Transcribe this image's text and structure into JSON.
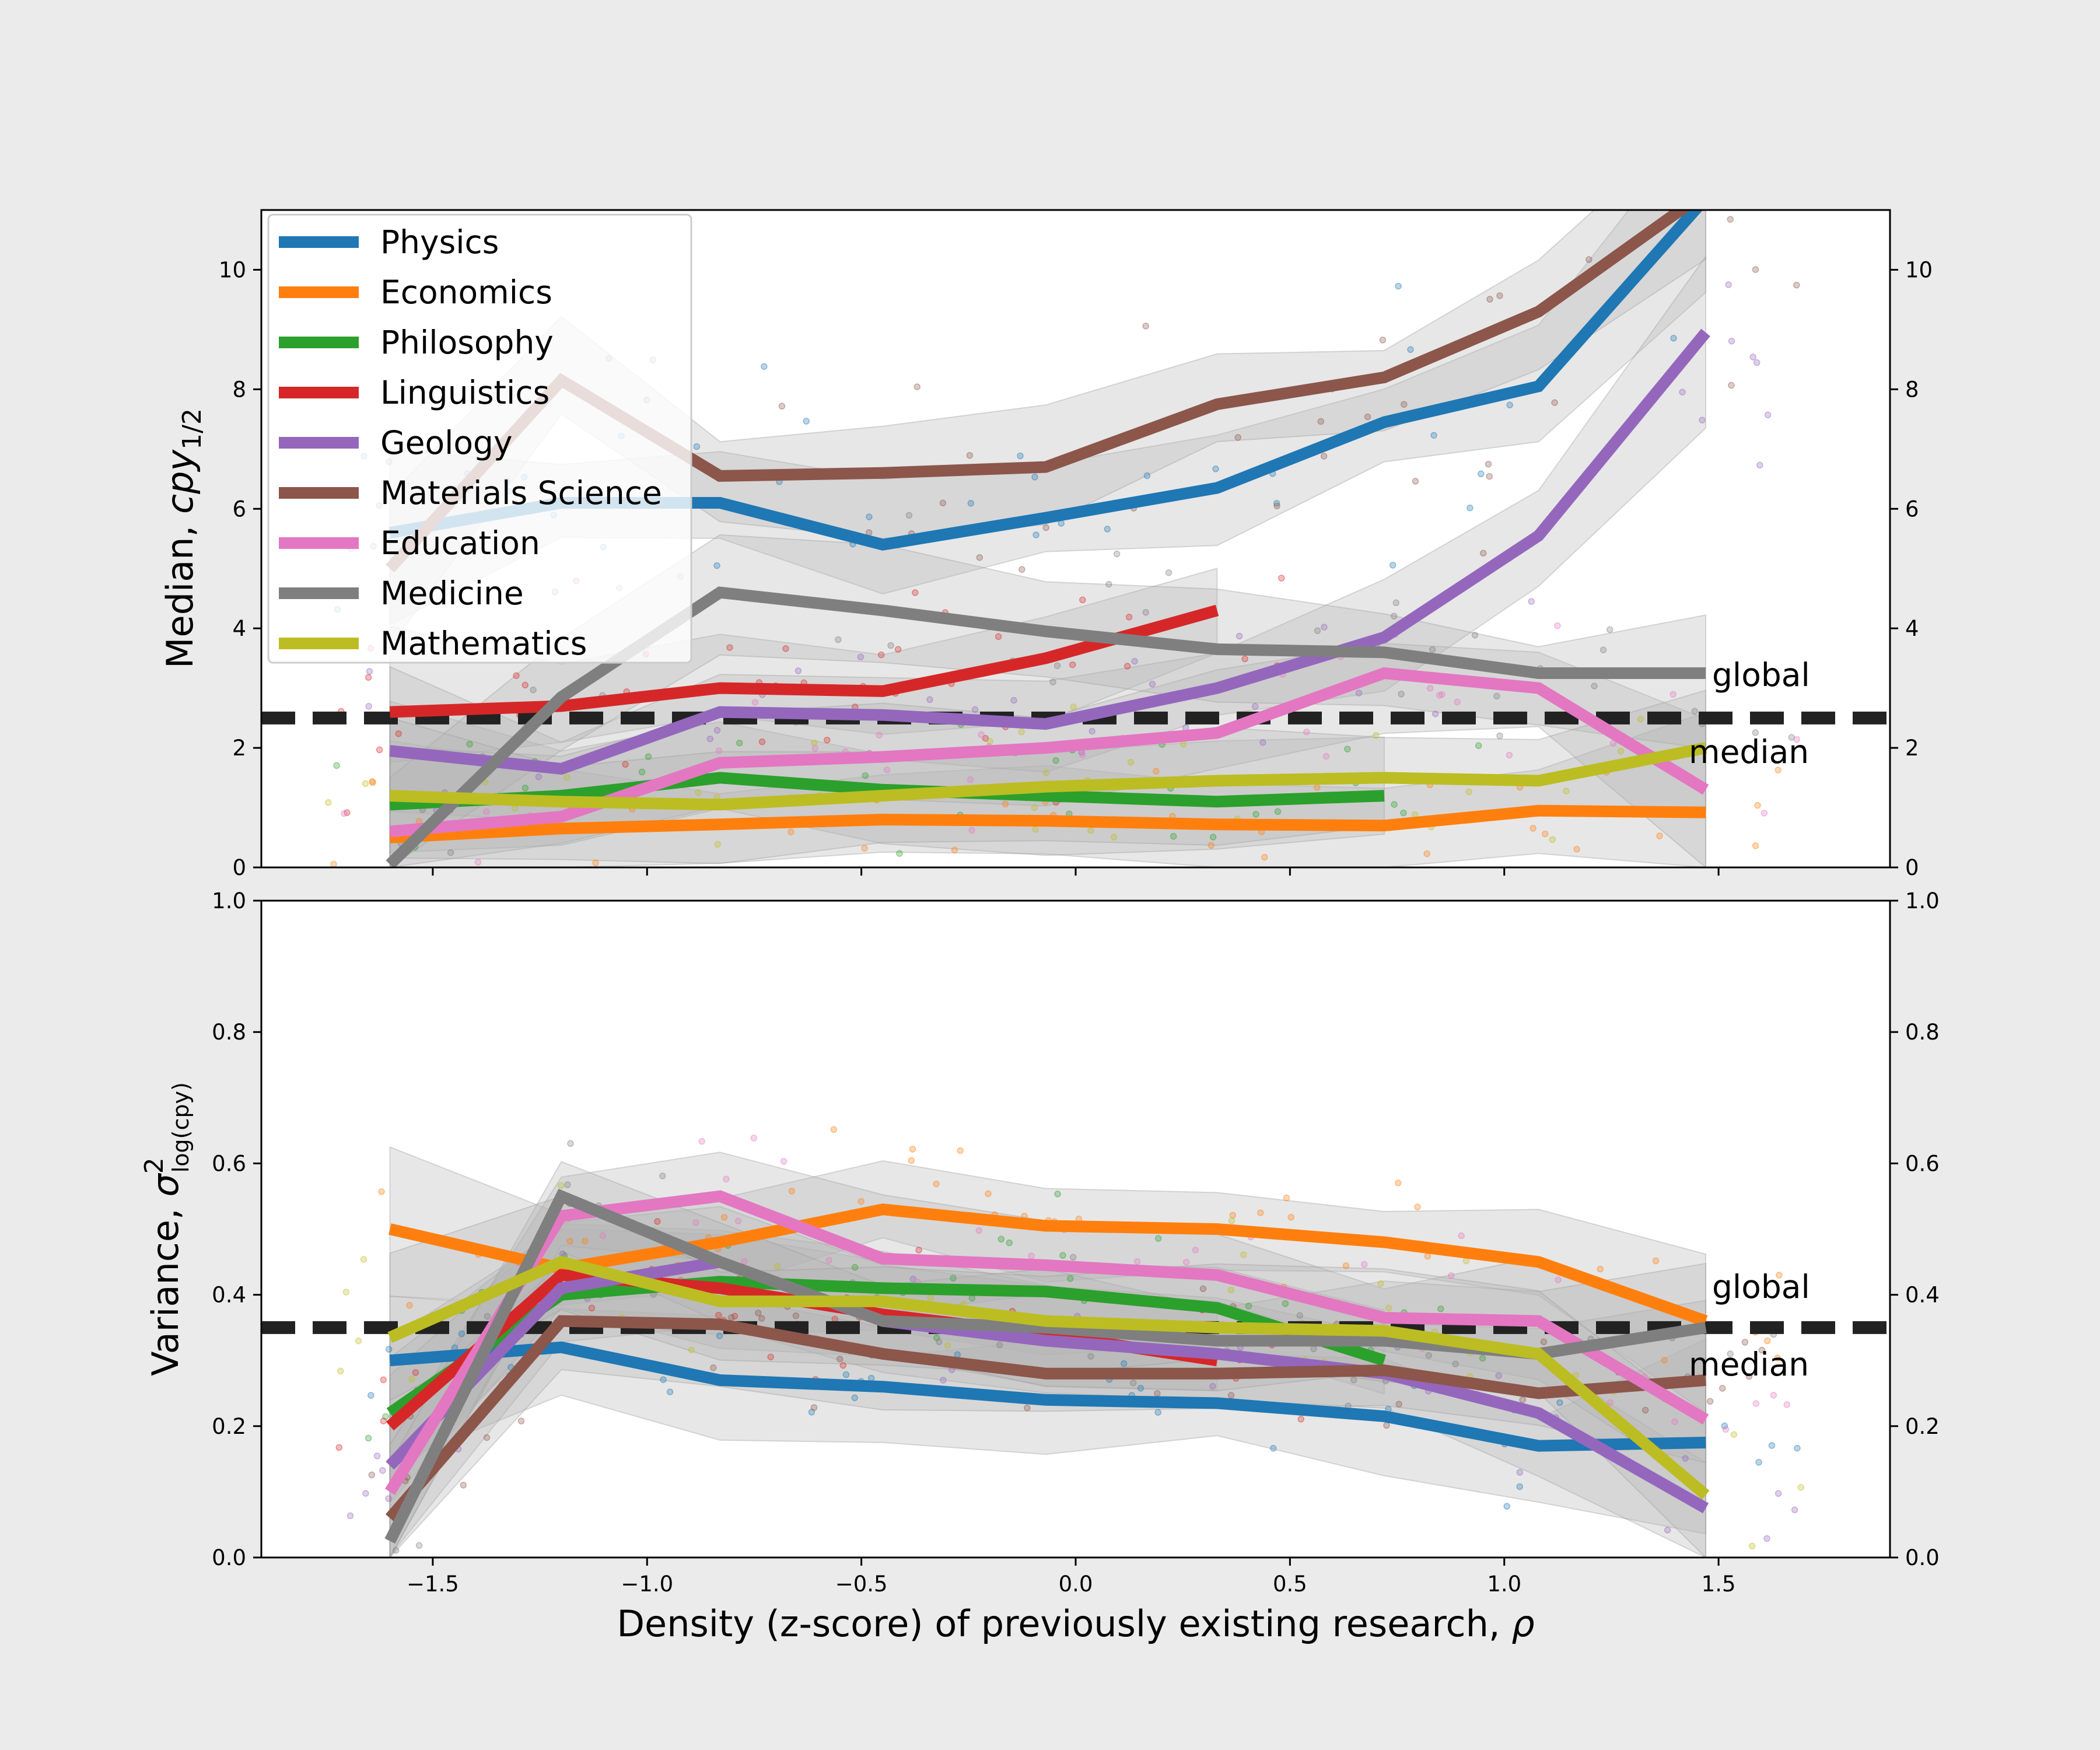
{
  "chart_data": [
    {
      "type": "line",
      "panel": "top",
      "ylabel_main": "Median, ",
      "ylabel_math": "cpy",
      "ylabel_sub": "1/2",
      "ylim": [
        0,
        11
      ],
      "yticks": [
        0,
        2,
        4,
        6,
        8,
        10
      ],
      "ytick_labels": [
        "0",
        "2",
        "4",
        "6",
        "8",
        "10"
      ],
      "xlim": [
        -1.9,
        1.9
      ],
      "x": [
        -1.6,
        -1.2,
        -0.83,
        -0.45,
        -0.07,
        0.33,
        0.72,
        1.08,
        1.47
      ],
      "reference": {
        "value": 2.5,
        "label_top": "global",
        "label_bottom": "median"
      },
      "series": [
        {
          "name": "Physics",
          "color": "#1f77b4",
          "values": [
            5.6,
            6.1,
            6.1,
            5.4,
            5.85,
            6.35,
            7.45,
            8.05,
            11.2
          ]
        },
        {
          "name": "Economics",
          "color": "#ff7f0e",
          "values": [
            0.5,
            0.65,
            0.72,
            0.8,
            0.78,
            0.72,
            0.7,
            0.95,
            0.92
          ]
        },
        {
          "name": "Philosophy",
          "color": "#2ca02c",
          "values": [
            1.05,
            1.2,
            1.5,
            1.3,
            1.2,
            1.1,
            1.2,
            null,
            null
          ]
        },
        {
          "name": "Linguistics",
          "color": "#d62728",
          "values": [
            2.6,
            2.7,
            3.0,
            2.95,
            3.5,
            4.3,
            null,
            null,
            null
          ]
        },
        {
          "name": "Geology",
          "color": "#9467bd",
          "values": [
            1.95,
            1.65,
            2.6,
            2.55,
            2.4,
            3.0,
            3.85,
            5.55,
            8.95
          ]
        },
        {
          "name": "Materials Science",
          "color": "#8c564b",
          "values": [
            5.0,
            8.15,
            6.55,
            6.6,
            6.7,
            7.75,
            8.2,
            9.3,
            11.3
          ]
        },
        {
          "name": "Education",
          "color": "#e377c2",
          "values": [
            0.6,
            0.85,
            1.75,
            1.85,
            2.0,
            2.25,
            3.25,
            3.0,
            1.3
          ]
        },
        {
          "name": "Medicine",
          "color": "#7f7f7f",
          "values": [
            0.05,
            2.85,
            4.6,
            4.3,
            3.95,
            3.65,
            3.6,
            3.25,
            3.25
          ]
        },
        {
          "name": "Mathematics",
          "color": "#bcbd22",
          "values": [
            1.2,
            1.1,
            1.05,
            1.2,
            1.35,
            1.45,
            1.5,
            1.45,
            2.0
          ]
        }
      ]
    },
    {
      "type": "line",
      "panel": "bottom",
      "ylabel_main": "Variance, ",
      "ylabel_math": "σ",
      "ylabel_sup": "2",
      "ylabel_sub": "log(cpy)",
      "ylim": [
        0,
        1.0
      ],
      "yticks": [
        0,
        0.2,
        0.4,
        0.6,
        0.8,
        1.0
      ],
      "ytick_labels": [
        "0.0",
        "0.2",
        "0.4",
        "0.6",
        "0.8",
        "1.0"
      ],
      "xlim": [
        -1.9,
        1.9
      ],
      "xticks": [
        -1.5,
        -1.0,
        -0.5,
        0.0,
        0.5,
        1.0,
        1.5
      ],
      "xtick_labels": [
        "−1.5",
        "−1.0",
        "−0.5",
        "0.0",
        "0.5",
        "1.0",
        "1.5"
      ],
      "xlabel_text": "Density (z-score) of previously existing research, ",
      "xlabel_math": "ρ",
      "x": [
        -1.6,
        -1.2,
        -0.83,
        -0.45,
        -0.07,
        0.33,
        0.72,
        1.08,
        1.47
      ],
      "reference": {
        "value": 0.35,
        "label_top": "global",
        "label_bottom": "median"
      },
      "series": [
        {
          "name": "Physics",
          "color": "#1f77b4",
          "values": [
            0.3,
            0.32,
            0.27,
            0.26,
            0.24,
            0.235,
            0.215,
            0.17,
            0.175
          ]
        },
        {
          "name": "Economics",
          "color": "#ff7f0e",
          "values": [
            0.5,
            0.44,
            0.48,
            0.53,
            0.505,
            0.5,
            0.48,
            0.45,
            0.36
          ]
        },
        {
          "name": "Philosophy",
          "color": "#2ca02c",
          "values": [
            0.22,
            0.4,
            0.42,
            0.41,
            0.405,
            0.38,
            0.3,
            null,
            null
          ]
        },
        {
          "name": "Linguistics",
          "color": "#d62728",
          "values": [
            0.2,
            0.43,
            0.41,
            0.37,
            0.34,
            0.3,
            null,
            null,
            null
          ]
        },
        {
          "name": "Geology",
          "color": "#9467bd",
          "values": [
            0.14,
            0.41,
            0.45,
            0.36,
            0.33,
            0.31,
            0.28,
            0.22,
            0.075
          ]
        },
        {
          "name": "Materials Science",
          "color": "#8c564b",
          "values": [
            0.06,
            0.36,
            0.355,
            0.31,
            0.28,
            0.28,
            0.285,
            0.25,
            0.27
          ]
        },
        {
          "name": "Education",
          "color": "#e377c2",
          "values": [
            0.1,
            0.52,
            0.55,
            0.455,
            0.445,
            0.43,
            0.365,
            0.36,
            0.21
          ]
        },
        {
          "name": "Medicine",
          "color": "#7f7f7f",
          "values": [
            0.025,
            0.55,
            0.45,
            0.36,
            0.35,
            0.33,
            0.33,
            0.31,
            0.35
          ]
        },
        {
          "name": "Mathematics",
          "color": "#bcbd22",
          "values": [
            0.335,
            0.45,
            0.39,
            0.39,
            0.36,
            0.35,
            0.345,
            0.31,
            0.095
          ]
        }
      ]
    }
  ],
  "legend": [
    {
      "label": "Physics",
      "color": "#1f77b4"
    },
    {
      "label": "Economics",
      "color": "#ff7f0e"
    },
    {
      "label": "Philosophy",
      "color": "#2ca02c"
    },
    {
      "label": "Linguistics",
      "color": "#d62728"
    },
    {
      "label": "Geology",
      "color": "#9467bd"
    },
    {
      "label": "Materials Science",
      "color": "#8c564b"
    },
    {
      "label": "Education",
      "color": "#e377c2"
    },
    {
      "label": "Medicine",
      "color": "#7f7f7f"
    },
    {
      "label": "Mathematics",
      "color": "#bcbd22"
    }
  ],
  "legend_placement": "top-left",
  "colors": {
    "background": "#ebebeb",
    "panel": "#ffffff",
    "reference_line": "#222222",
    "band": "#b4b4b4"
  }
}
